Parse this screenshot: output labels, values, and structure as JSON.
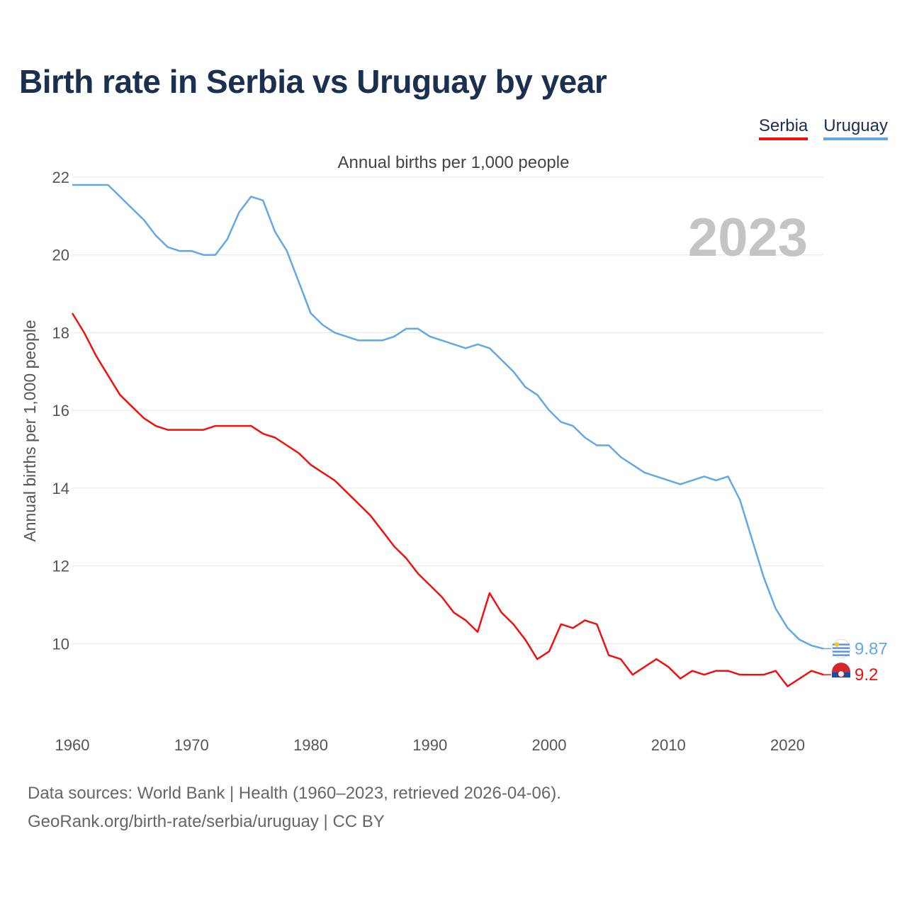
{
  "title": "Birth rate in Serbia vs Uruguay by year",
  "subtitle": "Annual births per 1,000 people",
  "legend": [
    {
      "name": "Serbia",
      "color": "#ee1111"
    },
    {
      "name": "Uruguay",
      "color": "#62a8e5"
    }
  ],
  "footer": {
    "line1": "Data sources: World Bank | Health (1960–2023, retrieved 2026-04-06).",
    "line2": "GeoRank.org/birth-rate/serbia/uruguay | CC BY"
  },
  "chart_data": {
    "type": "line",
    "title": "Birth rate in Serbia vs Uruguay by year",
    "subtitle": "Annual births per 1,000 people",
    "ylabel": "Annual births per 1,000 people",
    "xlabel": "",
    "highlight_year": "2023",
    "xlim": [
      1960,
      2023
    ],
    "ylim": [
      8,
      22
    ],
    "xticks": [
      1960,
      1970,
      1980,
      1990,
      2000,
      2010,
      2020
    ],
    "yticks": [
      10,
      12,
      14,
      16,
      18,
      20,
      22
    ],
    "grid": true,
    "legend_position": "top-right",
    "x": [
      1960,
      1961,
      1962,
      1963,
      1964,
      1965,
      1966,
      1967,
      1968,
      1969,
      1970,
      1971,
      1972,
      1973,
      1974,
      1975,
      1976,
      1977,
      1978,
      1979,
      1980,
      1981,
      1982,
      1983,
      1984,
      1985,
      1986,
      1987,
      1988,
      1989,
      1990,
      1991,
      1992,
      1993,
      1994,
      1995,
      1996,
      1997,
      1998,
      1999,
      2000,
      2001,
      2002,
      2003,
      2004,
      2005,
      2006,
      2007,
      2008,
      2009,
      2010,
      2011,
      2012,
      2013,
      2014,
      2015,
      2016,
      2017,
      2018,
      2019,
      2020,
      2021,
      2022,
      2023
    ],
    "series": [
      {
        "name": "Serbia",
        "color": "#ee1111",
        "end_label": "9.2",
        "values": [
          18.5,
          18.0,
          17.4,
          16.9,
          16.4,
          16.1,
          15.8,
          15.6,
          15.5,
          15.5,
          15.5,
          15.5,
          15.6,
          15.6,
          15.6,
          15.6,
          15.4,
          15.3,
          15.1,
          14.9,
          14.6,
          14.4,
          14.2,
          13.9,
          13.6,
          13.3,
          12.9,
          12.5,
          12.2,
          11.8,
          11.5,
          11.2,
          10.8,
          10.6,
          10.3,
          11.3,
          10.8,
          10.5,
          10.1,
          9.6,
          9.8,
          10.5,
          10.4,
          10.6,
          10.5,
          9.7,
          9.6,
          9.2,
          9.4,
          9.6,
          9.4,
          9.1,
          9.3,
          9.2,
          9.3,
          9.3,
          9.2,
          9.2,
          9.2,
          9.3,
          8.9,
          9.1,
          9.3,
          9.2
        ]
      },
      {
        "name": "Uruguay",
        "color": "#62a8e5",
        "end_label": "9.87",
        "values": [
          21.8,
          21.8,
          21.8,
          21.8,
          21.5,
          21.2,
          20.9,
          20.5,
          20.2,
          20.1,
          20.1,
          20.0,
          20.0,
          20.4,
          21.1,
          21.5,
          21.4,
          20.6,
          20.1,
          19.3,
          18.5,
          18.2,
          18.0,
          17.9,
          17.8,
          17.8,
          17.8,
          17.9,
          18.1,
          18.1,
          17.9,
          17.8,
          17.7,
          17.6,
          17.7,
          17.6,
          17.3,
          17.0,
          16.6,
          16.4,
          16.0,
          15.7,
          15.6,
          15.3,
          15.1,
          15.1,
          14.8,
          14.6,
          14.4,
          14.3,
          14.2,
          14.1,
          14.2,
          14.3,
          14.2,
          14.3,
          13.7,
          12.7,
          11.7,
          10.9,
          10.4,
          10.1,
          9.95,
          9.87
        ]
      }
    ]
  }
}
